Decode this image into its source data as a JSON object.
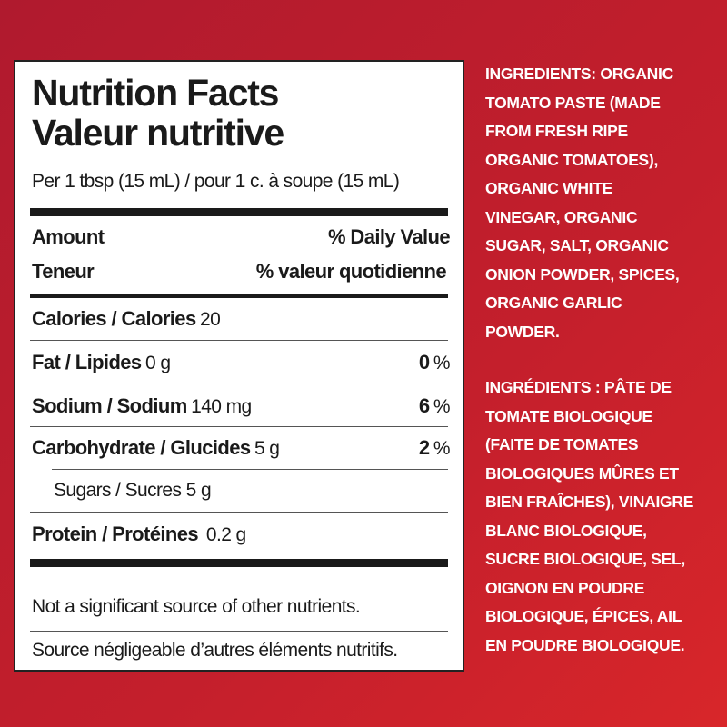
{
  "label": {
    "title_en": "Nutrition Facts",
    "title_fr": "Valeur nutritive",
    "serving": "Per 1 tbsp (15 mL) / pour 1 c. à soupe (15 mL)",
    "amount_en": "Amount",
    "amount_fr": "Teneur",
    "dv_en": "% Daily Value",
    "dv_fr": "% valeur quotidienne",
    "calories_label": "Calories / Calories",
    "calories_value": "20",
    "nutrients": [
      {
        "label": "Fat / Lipides",
        "amount": "0 g",
        "dv": "0",
        "unit": "%"
      },
      {
        "label": "Sodium / Sodium",
        "amount": "140 mg",
        "dv": "6",
        "unit": "%"
      },
      {
        "label": "Carbohydrate / Glucides",
        "amount": "5 g",
        "dv": "2",
        "unit": "%"
      }
    ],
    "sugars": "Sugars / Sucres 5 g",
    "protein_label": "Protein / Protéines",
    "protein_value": "0.2 g",
    "footnote_en": "Not a significant source of other nutrients.",
    "footnote_fr": "Source négligeable d’autres éléments nutritifs."
  },
  "ingredients_en": [
    "INGREDIENTS: ORGANIC",
    "TOMATO PASTE (MADE",
    "FROM FRESH RIPE",
    "ORGANIC TOMATOES),",
    "ORGANIC WHITE",
    "VINEGAR, ORGANIC",
    "SUGAR, SALT, ORGANIC",
    "ONION POWDER, SPICES,",
    "ORGANIC GARLIC",
    "POWDER."
  ],
  "ingredients_fr": [
    "INGRÉDIENTS : PÂTE DE",
    "TOMATE BIOLOGIQUE",
    "(FAITE DE TOMATES",
    "BIOLOGIQUES MÛRES ET",
    "BIEN FRAÎCHES), VINAIGRE",
    "BLANC BIOLOGIQUE,",
    "SUCRE BIOLOGIQUE, SEL,",
    "OIGNON EN POUDRE",
    "BIOLOGIQUE, ÉPICES, AIL",
    "EN POUDRE BIOLOGIQUE."
  ],
  "colors": {
    "background": "#c41f2c",
    "panel": "#ffffff",
    "text": "#1a1a1a"
  }
}
